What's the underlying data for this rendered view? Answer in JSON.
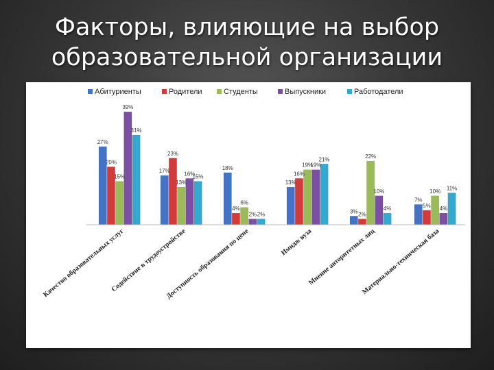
{
  "slide": {
    "title_line1": "Факторы, влияющие на выбор",
    "title_line2": "образовательной организации"
  },
  "chart_data": {
    "type": "bar",
    "categories": [
      "Качество образовательных услуг",
      "Содействие в трудоустройстве",
      "Доступность образования по цене",
      "Имидж вуза",
      "Мнение авторитетных лиц",
      "Материально-техническая база"
    ],
    "series": [
      {
        "name": "Абитуриенты",
        "color": "#4472C4",
        "values": [
          27,
          17,
          18,
          13,
          3,
          7
        ]
      },
      {
        "name": "Родители",
        "color": "#D23B3B",
        "values": [
          20,
          23,
          4,
          16,
          2,
          5
        ]
      },
      {
        "name": "Студенты",
        "color": "#9BBB59",
        "values": [
          15,
          13,
          6,
          19,
          22,
          10
        ]
      },
      {
        "name": "Выпускники",
        "color": "#7B4FA3",
        "values": [
          39,
          16,
          2,
          19,
          10,
          4
        ]
      },
      {
        "name": "Работодатели",
        "color": "#33A9CF",
        "values": [
          31,
          15,
          2,
          21,
          4,
          11
        ]
      }
    ],
    "value_suffix": "%",
    "ylim": [
      0,
      40
    ],
    "legend_position": "top",
    "grid": false
  }
}
